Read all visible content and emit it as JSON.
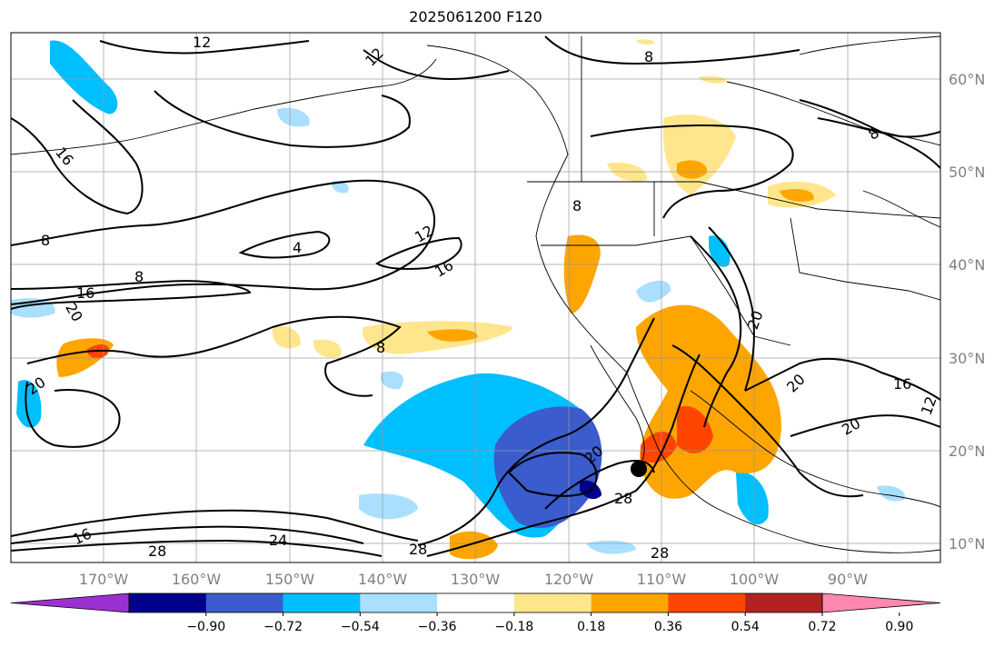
{
  "title": "2025061200 F120",
  "map": {
    "projection": "PlateCarree",
    "lon_range": [
      -180,
      -80
    ],
    "lat_range": [
      8,
      65
    ],
    "lat_ticks": [
      {
        "value": 60,
        "label": "60°N"
      },
      {
        "value": 50,
        "label": "50°N"
      },
      {
        "value": 40,
        "label": "40°N"
      },
      {
        "value": 30,
        "label": "30°N"
      },
      {
        "value": 20,
        "label": "20°N"
      },
      {
        "value": 10,
        "label": "10°N"
      }
    ],
    "lon_ticks": [
      {
        "value": -170,
        "label": "170°W"
      },
      {
        "value": -160,
        "label": "160°W"
      },
      {
        "value": -150,
        "label": "150°W"
      },
      {
        "value": -140,
        "label": "140°W"
      },
      {
        "value": -130,
        "label": "130°W"
      },
      {
        "value": -120,
        "label": "120°W"
      },
      {
        "value": -110,
        "label": "110°W"
      },
      {
        "value": -100,
        "label": "100°W"
      },
      {
        "value": -90,
        "label": "90°W"
      }
    ],
    "grid": true,
    "contour_labels": [
      "12",
      "8",
      "12",
      "8",
      "4",
      "12",
      "16",
      "8",
      "16",
      "20",
      "20",
      "8",
      "16",
      "20",
      "20",
      "20",
      "28",
      "28",
      "28",
      "16",
      "24",
      "28",
      "20",
      "16",
      "12",
      "8",
      "8"
    ],
    "storm_marker": {
      "lon": -111,
      "lat": 18
    }
  },
  "colorbar": {
    "extend": "both",
    "colors": [
      "#9b30d0",
      "#00008b",
      "#3a5ccc",
      "#00bfff",
      "#aadfff",
      "#ffffff",
      "#ffe68c",
      "#ffa500",
      "#ff4500",
      "#b22222",
      "#ff88b0"
    ],
    "tick_labels": [
      "−0.90",
      "−0.72",
      "−0.54",
      "−0.36",
      "−0.18",
      "0.18",
      "0.36",
      "0.54",
      "0.72",
      "0.90"
    ]
  }
}
